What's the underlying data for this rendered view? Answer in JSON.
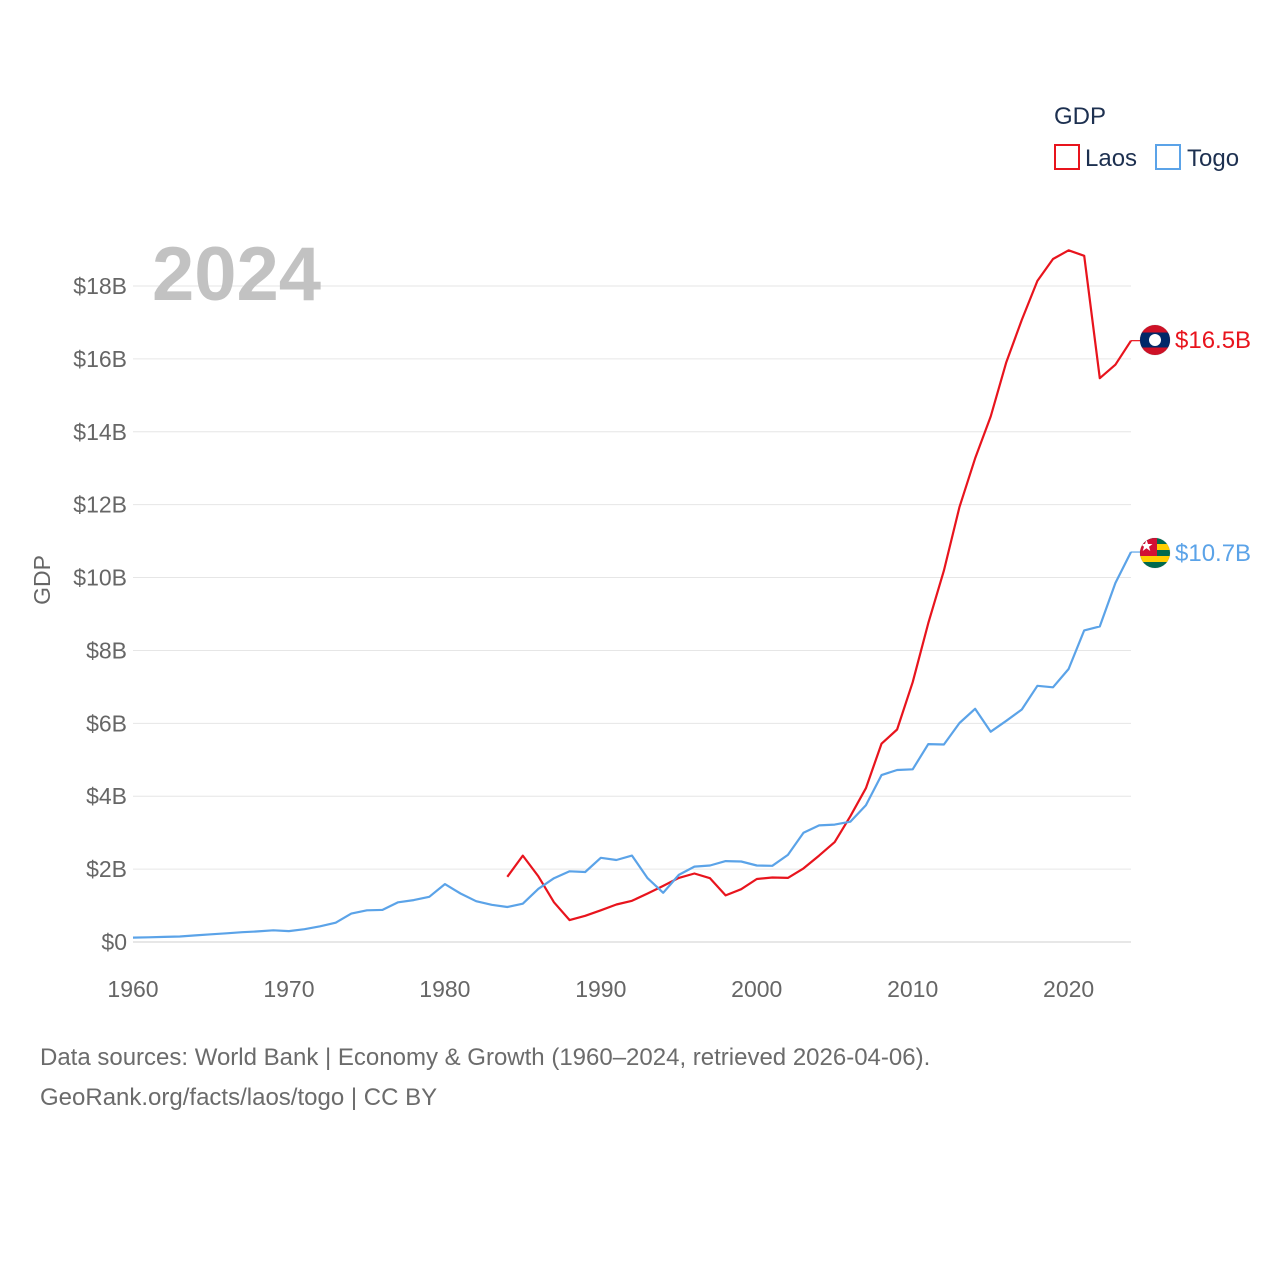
{
  "chart_data": {
    "type": "line",
    "title": "",
    "year_label": "2024",
    "xlabel": "",
    "ylabel": "GDP",
    "xlim": [
      1960,
      2024
    ],
    "ylim": [
      0,
      19
    ],
    "x_ticks": [
      1960,
      1970,
      1980,
      1990,
      2000,
      2010,
      2020
    ],
    "y_ticks": [
      {
        "value": 0,
        "label": "$0"
      },
      {
        "value": 2,
        "label": "$2B"
      },
      {
        "value": 4,
        "label": "$4B"
      },
      {
        "value": 6,
        "label": "$6B"
      },
      {
        "value": 8,
        "label": "$8B"
      },
      {
        "value": 10,
        "label": "$10B"
      },
      {
        "value": 12,
        "label": "$12B"
      },
      {
        "value": 14,
        "label": "$14B"
      },
      {
        "value": 16,
        "label": "$16B"
      },
      {
        "value": 18,
        "label": "$18B"
      }
    ],
    "legend": {
      "title": "GDP",
      "position": "top-right"
    },
    "grid": true,
    "series": [
      {
        "name": "Laos",
        "color": "#e8141d",
        "end_label": "$16.5B",
        "flag_icon": "laos-flag-icon",
        "x": [
          1984,
          1985,
          1986,
          1987,
          1988,
          1989,
          1990,
          1991,
          1992,
          1993,
          1994,
          1995,
          1996,
          1997,
          1998,
          1999,
          2000,
          2001,
          2002,
          2003,
          2004,
          2005,
          2006,
          2007,
          2008,
          2009,
          2010,
          2011,
          2012,
          2013,
          2014,
          2015,
          2016,
          2017,
          2018,
          2019,
          2020,
          2021,
          2022,
          2023,
          2024
        ],
        "values": [
          1.79,
          2.37,
          1.8,
          1.09,
          0.6,
          0.72,
          0.87,
          1.03,
          1.13,
          1.33,
          1.54,
          1.76,
          1.88,
          1.75,
          1.28,
          1.45,
          1.73,
          1.77,
          1.76,
          2.02,
          2.37,
          2.74,
          3.45,
          4.22,
          5.44,
          5.83,
          7.13,
          8.75,
          10.19,
          11.94,
          13.27,
          14.42,
          15.91,
          17.07,
          18.14,
          18.74,
          18.98,
          18.83,
          15.47,
          15.84,
          16.5
        ]
      },
      {
        "name": "Togo",
        "color": "#5ba3e8",
        "end_label": "$10.7B",
        "flag_icon": "togo-flag-icon",
        "x": [
          1960,
          1961,
          1962,
          1963,
          1964,
          1965,
          1966,
          1967,
          1968,
          1969,
          1970,
          1971,
          1972,
          1973,
          1974,
          1975,
          1976,
          1977,
          1978,
          1979,
          1980,
          1981,
          1982,
          1983,
          1984,
          1985,
          1986,
          1987,
          1988,
          1989,
          1990,
          1991,
          1992,
          1993,
          1994,
          1995,
          1996,
          1997,
          1998,
          1999,
          2000,
          2001,
          2002,
          2003,
          2004,
          2005,
          2006,
          2007,
          2008,
          2009,
          2010,
          2011,
          2012,
          2013,
          2014,
          2015,
          2016,
          2017,
          2018,
          2019,
          2020,
          2021,
          2022,
          2023,
          2024
        ],
        "values": [
          0.12,
          0.13,
          0.14,
          0.15,
          0.18,
          0.21,
          0.24,
          0.27,
          0.29,
          0.32,
          0.3,
          0.35,
          0.43,
          0.53,
          0.78,
          0.87,
          0.88,
          1.09,
          1.15,
          1.24,
          1.59,
          1.33,
          1.12,
          1.02,
          0.96,
          1.05,
          1.46,
          1.75,
          1.94,
          1.92,
          2.31,
          2.25,
          2.37,
          1.75,
          1.35,
          1.84,
          2.07,
          2.1,
          2.22,
          2.21,
          2.1,
          2.09,
          2.39,
          3.0,
          3.2,
          3.22,
          3.3,
          3.75,
          4.58,
          4.72,
          4.74,
          5.43,
          5.42,
          6.01,
          6.4,
          5.77,
          6.07,
          6.38,
          7.03,
          6.99,
          7.49,
          8.55,
          8.66,
          9.85,
          10.7
        ]
      }
    ]
  },
  "footer": {
    "sources": "Data sources: World Bank | Economy & Growth (1960–2024, retrieved 2026-04-06).",
    "link": "GeoRank.org/facts/laos/togo | CC BY"
  }
}
